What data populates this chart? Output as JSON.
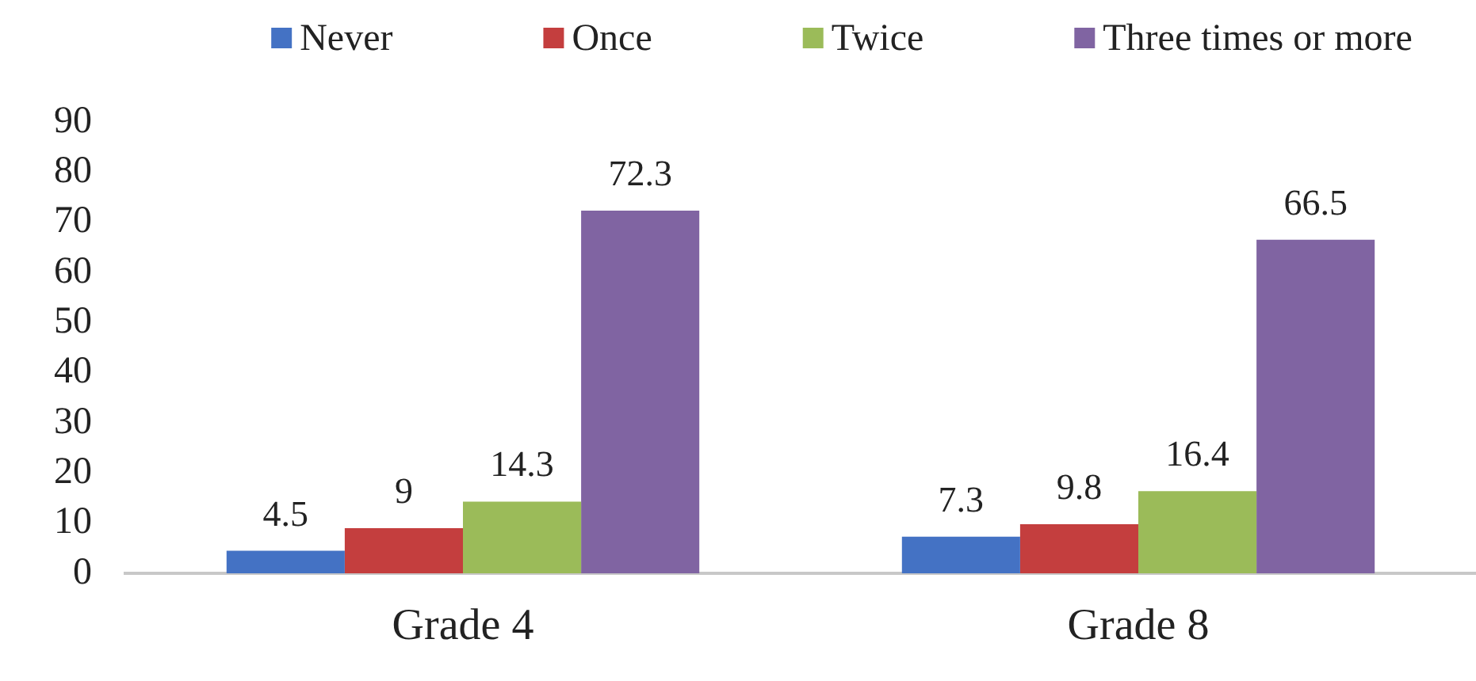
{
  "chart_data": {
    "type": "bar",
    "categories": [
      "Grade 4",
      "Grade 8"
    ],
    "series": [
      {
        "name": "Never",
        "color": "#4472c4",
        "values": [
          4.5,
          7.3
        ]
      },
      {
        "name": "Once",
        "color": "#c43e3e",
        "values": [
          9,
          9.8
        ]
      },
      {
        "name": "Twice",
        "color": "#9bbb59",
        "values": [
          14.3,
          16.4
        ]
      },
      {
        "name": "Three times or more",
        "color": "#8064a2",
        "values": [
          72.3,
          66.5
        ]
      }
    ],
    "ylim": [
      0,
      90
    ],
    "yticks": [
      0,
      10,
      20,
      30,
      40,
      50,
      60,
      70,
      80,
      90
    ],
    "data_labels": true,
    "legend": "top"
  }
}
